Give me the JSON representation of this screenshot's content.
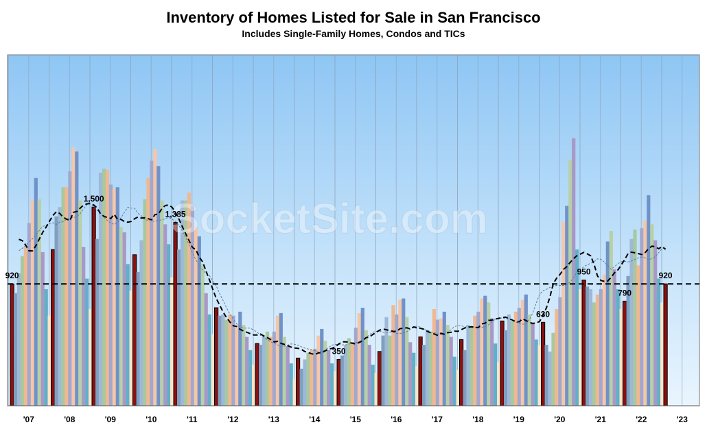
{
  "chart_data": {
    "type": "bar",
    "title": "Inventory of Homes Listed for Sale in San Francisco",
    "subtitle": "Includes Single-Family Homes, Condos and TICs",
    "watermark": "SocketSite.com",
    "ylim": [
      0,
      2650
    ],
    "grid": "vertical",
    "year_labels": [
      "'07",
      "'08",
      "'09",
      "'10",
      "'11",
      "'12",
      "'13",
      "'14",
      "'15",
      "'16",
      "'17",
      "'18",
      "'19",
      "'20",
      "'21",
      "'22",
      "'23"
    ],
    "january_values": [
      920,
      1180,
      1500,
      1140,
      1385,
      740,
      470,
      360,
      350,
      410,
      520,
      500,
      640,
      630,
      950,
      790,
      920
    ],
    "annotations": [
      {
        "year": "'07",
        "label": "920"
      },
      {
        "year": "'09",
        "label": "1,500"
      },
      {
        "year": "'11",
        "label": "1,385"
      },
      {
        "year": "'15",
        "label": "350"
      },
      {
        "year": "'20",
        "label": "630"
      },
      {
        "year": "'21",
        "label": "950"
      },
      {
        "year": "'22",
        "label": "790"
      },
      {
        "year": "'23",
        "label": "920"
      }
    ],
    "reference_line": {
      "value": 920,
      "style": "dashed"
    },
    "monthly_values": [
      [
        920,
        850,
        1000,
        1130,
        1200,
        1380,
        1550,
        1720,
        1560,
        1160,
        880,
        680
      ],
      [
        1180,
        1430,
        1500,
        1650,
        1650,
        1770,
        1950,
        1920,
        1550,
        1200,
        960,
        730
      ],
      [
        1500,
        1260,
        1760,
        1790,
        1780,
        1670,
        1640,
        1650,
        1350,
        1310,
        1070,
        870
      ],
      [
        1140,
        1010,
        1250,
        1560,
        1720,
        1850,
        1940,
        1810,
        1550,
        1370,
        1220,
        970
      ],
      [
        1385,
        1180,
        1550,
        1550,
        1610,
        1510,
        1350,
        1280,
        1070,
        850,
        690,
        540
      ],
      [
        740,
        680,
        690,
        650,
        690,
        680,
        610,
        710,
        610,
        520,
        420,
        310
      ],
      [
        470,
        460,
        520,
        560,
        520,
        560,
        680,
        700,
        520,
        450,
        320,
        200
      ],
      [
        360,
        280,
        350,
        400,
        420,
        430,
        530,
        580,
        490,
        420,
        320,
        260
      ],
      [
        350,
        380,
        460,
        510,
        480,
        590,
        700,
        740,
        570,
        460,
        310,
        250
      ],
      [
        410,
        530,
        670,
        530,
        760,
        690,
        800,
        810,
        670,
        480,
        400,
        300
      ],
      [
        520,
        460,
        560,
        560,
        730,
        650,
        660,
        710,
        610,
        520,
        370,
        270
      ],
      [
        500,
        420,
        610,
        600,
        680,
        710,
        810,
        830,
        780,
        660,
        470,
        330
      ],
      [
        640,
        570,
        690,
        640,
        710,
        740,
        800,
        840,
        690,
        630,
        500,
        460
      ],
      [
        630,
        460,
        410,
        550,
        730,
        820,
        1390,
        1510,
        1860,
        2020,
        1180,
        880
      ],
      [
        950,
        900,
        880,
        780,
        840,
        880,
        990,
        1240,
        1320,
        1030,
        880,
        730
      ],
      [
        790,
        980,
        1260,
        1330,
        1060,
        1340,
        1400,
        1590,
        1370,
        1250,
        960,
        780
      ],
      [
        920
      ]
    ]
  }
}
